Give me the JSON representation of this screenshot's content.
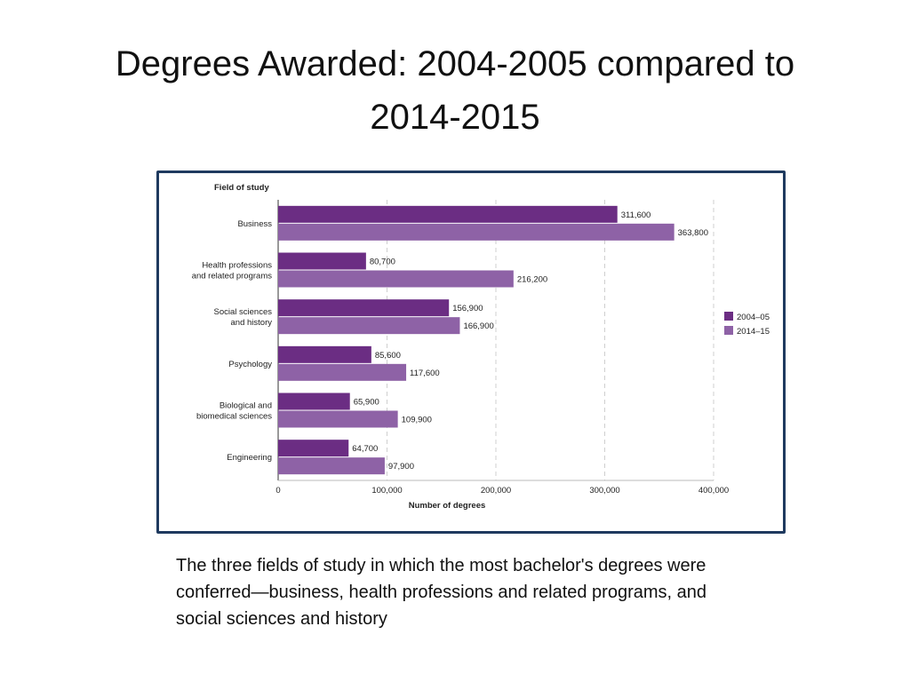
{
  "slide": {
    "title_line1": "Degrees Awarded:  2004-2005 compared to",
    "title_line2": "2014-2015",
    "caption_line1": "The three fields of study in which the most bachelor's degrees were",
    "caption_line2": "conferred—business, health professions and related programs, and",
    "caption_line3": "social sciences and history"
  },
  "chart_data": {
    "type": "bar",
    "orientation": "horizontal",
    "y_axis_title": "Field of study",
    "xlabel": "Number of degrees",
    "xlim": [
      0,
      400000
    ],
    "x_ticks": [
      0,
      100000,
      200000,
      300000,
      400000
    ],
    "x_tick_labels": [
      "0",
      "100,000",
      "200,000",
      "300,000",
      "400,000"
    ],
    "grid": true,
    "legend_position": "right",
    "categories": [
      [
        "Business"
      ],
      [
        "Health professions",
        "and related programs"
      ],
      [
        "Social sciences",
        "and history"
      ],
      [
        "Psychology"
      ],
      [
        "Biological and",
        "biomedical sciences"
      ],
      [
        "Engineering"
      ]
    ],
    "series": [
      {
        "name": "2004–05",
        "color": "#6b2d83",
        "values": [
          311600,
          80700,
          156900,
          85600,
          65900,
          64700
        ],
        "labels": [
          "311,600",
          "80,700",
          "156,900",
          "85,600",
          "65,900",
          "64,700"
        ]
      },
      {
        "name": "2014–15",
        "color": "#8e62a6",
        "values": [
          363800,
          216200,
          166900,
          117600,
          109900,
          97900
        ],
        "labels": [
          "363,800",
          "216,200",
          "166,900",
          "117,600",
          "109,900",
          "97,900"
        ]
      }
    ]
  }
}
